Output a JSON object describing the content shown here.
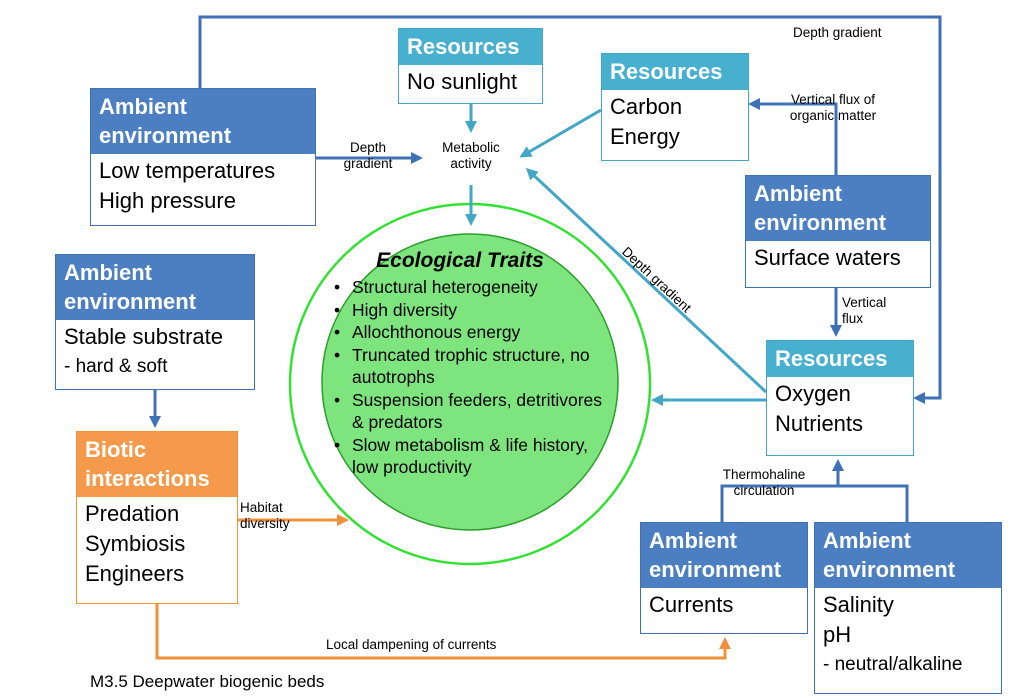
{
  "labels": {
    "resources": "Resources",
    "ambient": "Ambient environment",
    "biotic": "Biotic interactions"
  },
  "boxes": {
    "ambient_temp": [
      "Low temperatures",
      "High pressure"
    ],
    "res_sunlight": [
      "No sunlight"
    ],
    "res_carbon": [
      "Carbon",
      "Energy"
    ],
    "ambient_surface": [
      "Surface waters"
    ],
    "ambient_substrate": [
      "Stable substrate",
      "- hard & soft"
    ],
    "biotic": [
      "Predation",
      "Symbiosis",
      "Engineers"
    ],
    "res_oxygen": [
      "Oxygen",
      "Nutrients"
    ],
    "ambient_currents": [
      "Currents"
    ],
    "ambient_salinity": [
      "Salinity",
      "pH",
      "- neutral/alkaline"
    ]
  },
  "center": {
    "title": "Ecological Traits",
    "items": [
      "Structural heterogeneity",
      "High diversity",
      "Allochthonous energy",
      "Truncated trophic structure, no autotrophs",
      "Suspension feeders, detritivores & predators",
      "Slow metabolism & life history, low productivity"
    ]
  },
  "connectors": {
    "depth_gradient_top": "Depth gradient",
    "depth_gradient_left": "Depth gradient",
    "metabolic_activity": "Metabolic activity",
    "vertical_flux_organic": "Vertical flux of organic matter",
    "depth_gradient_diag": "Depth gradient",
    "vertical_flux": "Vertical flux",
    "habitat_diversity": "Habitat diversity",
    "thermohaline": "Thermohaline circulation",
    "local_dampening": "Local dampening of currents"
  },
  "colors": {
    "ambient": "#4b7fc2",
    "resources": "#47b0ce",
    "biotic": "#f5994a",
    "circle_fill": "#7ee47e",
    "circle_ring": "#33e133"
  },
  "footer": "M3.5 Deepwater biogenic beds"
}
